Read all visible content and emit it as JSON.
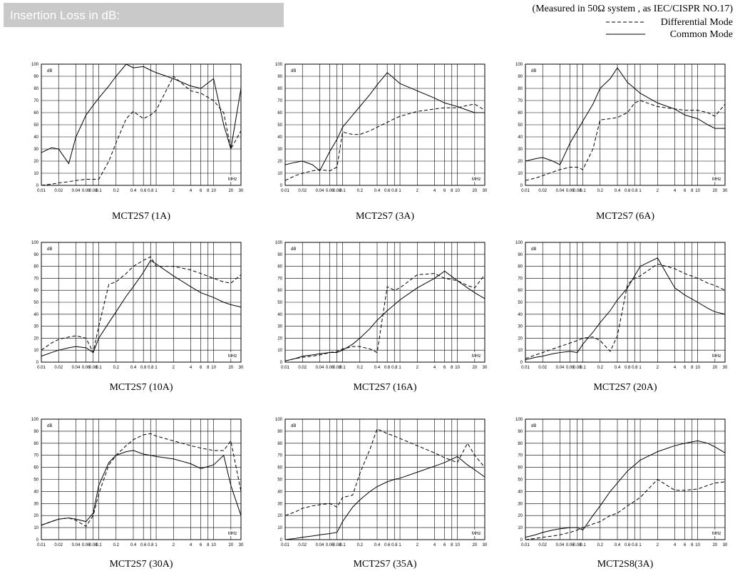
{
  "header": {
    "title": "Insertion Loss in dB:",
    "note": "(Measured in 50Ω system , as IEC/CISPR NO.17)",
    "legend": [
      {
        "name": "Differential Mode",
        "style": "dashed"
      },
      {
        "name": "Common Mode",
        "style": "solid"
      }
    ]
  },
  "chart_data": [
    {
      "type": "line",
      "title": "MCT2S7 (1A)",
      "ylabel": "dB",
      "xlabel": "MHz",
      "xscale": "log",
      "grid": true,
      "xlim": [
        0.01,
        30
      ],
      "ylim": [
        0,
        100
      ],
      "yticks": [
        0,
        10,
        20,
        30,
        40,
        50,
        60,
        70,
        80,
        90,
        100
      ],
      "xticks": [
        0.01,
        0.02,
        0.04,
        0.06,
        0.08,
        0.1,
        0.2,
        0.4,
        0.6,
        0.8,
        1,
        2,
        4,
        6,
        8,
        10,
        20,
        30
      ],
      "x": [
        0.01,
        0.015,
        0.02,
        0.03,
        0.04,
        0.06,
        0.08,
        0.1,
        0.15,
        0.2,
        0.3,
        0.4,
        0.6,
        0.8,
        1,
        2,
        4,
        6,
        10,
        15,
        20,
        30
      ],
      "series": [
        {
          "style": "dashed",
          "color": "#000000",
          "values": [
            0,
            1,
            2,
            3,
            4,
            5,
            5,
            5,
            20,
            35,
            55,
            61,
            55,
            58,
            62,
            90,
            78,
            76,
            70,
            60,
            30,
            45
          ]
        },
        {
          "style": "solid",
          "color": "#000000",
          "values": [
            27,
            31,
            30,
            18,
            40,
            58,
            66,
            72,
            82,
            90,
            100,
            97,
            98,
            95,
            93,
            88,
            82,
            80,
            88,
            50,
            30,
            80
          ]
        }
      ]
    },
    {
      "type": "line",
      "title": "MCT2S7 (3A)",
      "ylabel": "dB",
      "xlabel": "MHz",
      "xscale": "log",
      "grid": true,
      "xlim": [
        0.01,
        30
      ],
      "ylim": [
        0,
        100
      ],
      "yticks": [
        0,
        10,
        20,
        30,
        40,
        50,
        60,
        70,
        80,
        90,
        100
      ],
      "xticks": [
        0.01,
        0.02,
        0.04,
        0.06,
        0.08,
        0.1,
        0.2,
        0.4,
        0.6,
        0.8,
        1,
        2,
        4,
        6,
        8,
        10,
        20,
        30
      ],
      "x": [
        0.01,
        0.015,
        0.02,
        0.03,
        0.04,
        0.06,
        0.08,
        0.1,
        0.15,
        0.2,
        0.3,
        0.4,
        0.6,
        0.8,
        1,
        2,
        4,
        6,
        10,
        15,
        20,
        30
      ],
      "series": [
        {
          "style": "dashed",
          "color": "#000000",
          "values": [
            4,
            8,
            10,
            12,
            13,
            12,
            15,
            44,
            42,
            42,
            45,
            48,
            52,
            55,
            57,
            61,
            63,
            64,
            64,
            66,
            67,
            62
          ]
        },
        {
          "style": "solid",
          "color": "#000000",
          "values": [
            17,
            19,
            20,
            17,
            12,
            28,
            38,
            48,
            58,
            65,
            75,
            83,
            93,
            88,
            84,
            78,
            72,
            68,
            65,
            62,
            60,
            60
          ]
        }
      ]
    },
    {
      "type": "line",
      "title": "MCT2S7 (6A)",
      "ylabel": "dB",
      "xlabel": "MHz",
      "xscale": "log",
      "grid": true,
      "xlim": [
        0.01,
        30
      ],
      "ylim": [
        0,
        100
      ],
      "yticks": [
        0,
        10,
        20,
        30,
        40,
        50,
        60,
        70,
        80,
        90,
        100
      ],
      "xticks": [
        0.01,
        0.02,
        0.04,
        0.06,
        0.08,
        0.1,
        0.2,
        0.4,
        0.6,
        0.8,
        1,
        2,
        4,
        6,
        8,
        10,
        20,
        30
      ],
      "x": [
        0.01,
        0.015,
        0.02,
        0.03,
        0.04,
        0.06,
        0.08,
        0.1,
        0.15,
        0.2,
        0.3,
        0.4,
        0.6,
        0.8,
        1,
        2,
        4,
        6,
        10,
        15,
        20,
        30
      ],
      "series": [
        {
          "style": "dashed",
          "color": "#000000",
          "values": [
            4,
            6,
            8,
            11,
            13,
            15,
            15,
            13,
            30,
            54,
            55,
            56,
            60,
            68,
            70,
            65,
            63,
            62,
            62,
            60,
            57,
            67
          ]
        },
        {
          "style": "solid",
          "color": "#000000",
          "values": [
            20,
            22,
            23,
            20,
            17,
            35,
            45,
            53,
            67,
            80,
            88,
            97,
            85,
            80,
            76,
            68,
            63,
            58,
            55,
            50,
            47,
            47
          ]
        }
      ]
    },
    {
      "type": "line",
      "title": "MCT2S7 (10A)",
      "ylabel": "dB",
      "xlabel": "MHz",
      "xscale": "log",
      "grid": true,
      "xlim": [
        0.01,
        30
      ],
      "ylim": [
        0,
        100
      ],
      "yticks": [
        0,
        10,
        20,
        30,
        40,
        50,
        60,
        70,
        80,
        90,
        100
      ],
      "xticks": [
        0.01,
        0.02,
        0.04,
        0.06,
        0.08,
        0.1,
        0.2,
        0.4,
        0.6,
        0.8,
        1,
        2,
        4,
        6,
        8,
        10,
        20,
        30
      ],
      "x": [
        0.01,
        0.015,
        0.02,
        0.03,
        0.04,
        0.06,
        0.08,
        0.1,
        0.15,
        0.2,
        0.3,
        0.4,
        0.6,
        0.8,
        1,
        2,
        4,
        6,
        10,
        15,
        20,
        30
      ],
      "series": [
        {
          "style": "dashed",
          "color": "#000000",
          "values": [
            10,
            16,
            19,
            21,
            22,
            20,
            8,
            30,
            65,
            67,
            74,
            80,
            85,
            88,
            80,
            80,
            77,
            74,
            70,
            67,
            66,
            73
          ]
        },
        {
          "style": "solid",
          "color": "#000000",
          "values": [
            5,
            8,
            10,
            12,
            13,
            12,
            8,
            20,
            33,
            42,
            55,
            63,
            75,
            85,
            82,
            72,
            63,
            58,
            54,
            50,
            48,
            46
          ]
        }
      ]
    },
    {
      "type": "line",
      "title": "MCT2S7 (16A)",
      "ylabel": "dB",
      "xlabel": "MHz",
      "xscale": "log",
      "grid": true,
      "xlim": [
        0.01,
        30
      ],
      "ylim": [
        0,
        100
      ],
      "yticks": [
        0,
        10,
        20,
        30,
        40,
        50,
        60,
        70,
        80,
        90,
        100
      ],
      "xticks": [
        0.01,
        0.02,
        0.04,
        0.06,
        0.08,
        0.1,
        0.2,
        0.4,
        0.6,
        0.8,
        1,
        2,
        4,
        6,
        8,
        10,
        20,
        30
      ],
      "x": [
        0.01,
        0.015,
        0.02,
        0.03,
        0.04,
        0.06,
        0.08,
        0.1,
        0.15,
        0.2,
        0.3,
        0.4,
        0.6,
        0.8,
        1,
        2,
        4,
        6,
        10,
        15,
        20,
        30
      ],
      "series": [
        {
          "style": "dashed",
          "color": "#000000",
          "values": [
            1,
            3,
            4,
            5,
            6,
            8,
            9,
            11,
            13,
            13,
            11,
            8,
            63,
            60,
            62,
            73,
            74,
            70,
            68,
            64,
            62,
            73
          ]
        },
        {
          "style": "solid",
          "color": "#000000",
          "values": [
            1,
            3,
            5,
            6,
            7,
            8,
            8,
            10,
            15,
            20,
            28,
            35,
            43,
            48,
            52,
            62,
            70,
            76,
            68,
            62,
            58,
            53
          ]
        }
      ]
    },
    {
      "type": "line",
      "title": "MCT2S7 (20A)",
      "ylabel": "dB",
      "xlabel": "MHz",
      "xscale": "log",
      "grid": true,
      "xlim": [
        0.01,
        30
      ],
      "ylim": [
        0,
        100
      ],
      "yticks": [
        0,
        10,
        20,
        30,
        40,
        50,
        60,
        70,
        80,
        90,
        100
      ],
      "xticks": [
        0.01,
        0.02,
        0.04,
        0.06,
        0.08,
        0.1,
        0.2,
        0.4,
        0.6,
        0.8,
        1,
        2,
        4,
        6,
        8,
        10,
        20,
        30
      ],
      "x": [
        0.01,
        0.015,
        0.02,
        0.03,
        0.04,
        0.06,
        0.08,
        0.1,
        0.15,
        0.2,
        0.3,
        0.4,
        0.6,
        0.8,
        1,
        2,
        4,
        6,
        10,
        15,
        20,
        30
      ],
      "series": [
        {
          "style": "dashed",
          "color": "#000000",
          "values": [
            3,
            6,
            8,
            11,
            13,
            16,
            18,
            20,
            21,
            18,
            9,
            22,
            65,
            70,
            72,
            82,
            78,
            74,
            70,
            66,
            64,
            60
          ]
        },
        {
          "style": "solid",
          "color": "#000000",
          "values": [
            2,
            4,
            5,
            7,
            8,
            9,
            8,
            15,
            25,
            33,
            43,
            52,
            62,
            72,
            80,
            87,
            62,
            56,
            50,
            45,
            42,
            40
          ]
        }
      ]
    },
    {
      "type": "line",
      "title": "MCT2S7 (30A)",
      "ylabel": "dB",
      "xlabel": "MHz",
      "xscale": "log",
      "grid": true,
      "xlim": [
        0.01,
        30
      ],
      "ylim": [
        0,
        100
      ],
      "yticks": [
        0,
        10,
        20,
        30,
        40,
        50,
        60,
        70,
        80,
        90,
        100
      ],
      "xticks": [
        0.01,
        0.02,
        0.04,
        0.06,
        0.08,
        0.1,
        0.2,
        0.4,
        0.6,
        0.8,
        1,
        2,
        4,
        6,
        8,
        10,
        20,
        30
      ],
      "x": [
        0.01,
        0.015,
        0.02,
        0.03,
        0.04,
        0.06,
        0.08,
        0.1,
        0.15,
        0.2,
        0.3,
        0.4,
        0.6,
        0.8,
        1,
        2,
        4,
        6,
        10,
        15,
        20,
        30
      ],
      "series": [
        {
          "style": "dashed",
          "color": "#000000",
          "values": [
            12,
            15,
            17,
            18,
            16,
            11,
            20,
            38,
            62,
            70,
            78,
            83,
            87,
            88,
            86,
            82,
            78,
            76,
            74,
            74,
            82,
            40
          ]
        },
        {
          "style": "solid",
          "color": "#000000",
          "values": [
            12,
            15,
            17,
            18,
            17,
            15,
            22,
            45,
            64,
            70,
            73,
            74,
            71,
            70,
            69,
            67,
            63,
            59,
            62,
            70,
            45,
            20
          ]
        }
      ]
    },
    {
      "type": "line",
      "title": "MCT2S7 (35A)",
      "ylabel": "dB",
      "xlabel": "MHz",
      "xscale": "log",
      "grid": true,
      "xlim": [
        0.01,
        30
      ],
      "ylim": [
        0,
        100
      ],
      "yticks": [
        0,
        10,
        20,
        30,
        40,
        50,
        60,
        70,
        80,
        90,
        100
      ],
      "xticks": [
        0.01,
        0.02,
        0.04,
        0.06,
        0.08,
        0.1,
        0.2,
        0.4,
        0.6,
        0.8,
        1,
        2,
        4,
        6,
        8,
        10,
        20,
        30
      ],
      "x": [
        0.01,
        0.015,
        0.02,
        0.03,
        0.04,
        0.06,
        0.08,
        0.1,
        0.15,
        0.2,
        0.3,
        0.4,
        0.6,
        0.8,
        1,
        2,
        4,
        6,
        10,
        15,
        20,
        30
      ],
      "series": [
        {
          "style": "dashed",
          "color": "#000000",
          "values": [
            20,
            23,
            26,
            28,
            29,
            30,
            27,
            35,
            37,
            55,
            75,
            92,
            88,
            86,
            84,
            78,
            72,
            68,
            64,
            80,
            70,
            60
          ]
        },
        {
          "style": "solid",
          "color": "#000000",
          "values": [
            0,
            1,
            2,
            3,
            4,
            5,
            6,
            15,
            27,
            33,
            40,
            44,
            48,
            50,
            51,
            56,
            61,
            64,
            69,
            62,
            58,
            52
          ]
        }
      ]
    },
    {
      "type": "line",
      "title": "MCT2S8(3A)",
      "ylabel": "dB",
      "xlabel": "MHz",
      "xscale": "log",
      "grid": true,
      "xlim": [
        0.01,
        30
      ],
      "ylim": [
        0,
        100
      ],
      "yticks": [
        0,
        10,
        20,
        30,
        40,
        50,
        60,
        70,
        80,
        90,
        100
      ],
      "xticks": [
        0.01,
        0.02,
        0.04,
        0.06,
        0.08,
        0.1,
        0.2,
        0.4,
        0.6,
        0.8,
        1,
        2,
        4,
        6,
        8,
        10,
        20,
        30
      ],
      "x": [
        0.01,
        0.015,
        0.02,
        0.03,
        0.04,
        0.06,
        0.08,
        0.1,
        0.15,
        0.2,
        0.3,
        0.4,
        0.6,
        0.8,
        1,
        2,
        4,
        6,
        10,
        15,
        20,
        30
      ],
      "series": [
        {
          "style": "dashed",
          "color": "#000000",
          "values": [
            0,
            1,
            2,
            3,
            4,
            6,
            8,
            10,
            13,
            15,
            20,
            22,
            28,
            32,
            35,
            50,
            41,
            41,
            42,
            45,
            47,
            48
          ]
        },
        {
          "style": "solid",
          "color": "#000000",
          "values": [
            2,
            4,
            6,
            8,
            9,
            10,
            10,
            8,
            20,
            28,
            40,
            47,
            57,
            62,
            66,
            73,
            78,
            80,
            82,
            80,
            77,
            72
          ]
        }
      ]
    }
  ]
}
